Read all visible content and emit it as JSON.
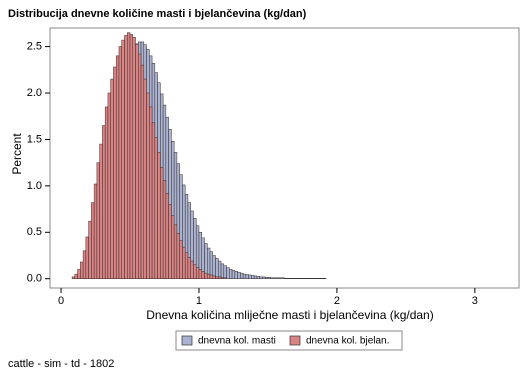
{
  "chart_data": {
    "type": "histogram",
    "title": "Distribucija dnevne količine masti i bjelančevina (kg/dan)",
    "x_label": "Dnevna količina mliječne masti i bjelančevina (kg/dan)",
    "y_label": "Percent",
    "footnote": "cattle - sim - td - 1802",
    "bins": [
      0.08,
      0.1,
      0.12,
      0.14,
      0.16,
      0.18,
      0.2,
      0.22,
      0.24,
      0.26,
      0.28,
      0.3,
      0.32,
      0.34,
      0.36,
      0.38,
      0.4,
      0.42,
      0.44,
      0.46,
      0.48,
      0.5,
      0.52,
      0.54,
      0.56,
      0.58,
      0.6,
      0.62,
      0.64,
      0.66,
      0.68,
      0.7,
      0.72,
      0.74,
      0.76,
      0.78,
      0.8,
      0.82,
      0.84,
      0.86,
      0.88,
      0.9,
      0.92,
      0.94,
      0.96,
      0.98,
      1,
      1.02,
      1.04,
      1.06,
      1.08,
      1.1,
      1.12,
      1.14,
      1.16,
      1.18,
      1.2,
      1.22,
      1.24,
      1.26,
      1.28,
      1.3,
      1.32,
      1.34,
      1.36,
      1.38,
      1.4,
      1.42,
      1.44,
      1.46,
      1.48,
      1.5,
      1.52,
      1.54,
      1.56,
      1.58,
      1.6,
      1.62,
      1.64,
      1.66,
      1.68,
      1.7,
      1.72,
      1.74,
      1.76,
      1.78,
      1.8,
      1.82,
      1.84,
      1.86,
      1.88,
      1.9,
      1.92,
      1.94,
      1.96,
      1.98,
      2
    ],
    "series": [
      {
        "name": "dnevna kol. masti",
        "color": "#a9b4d3",
        "values": [
          0,
          0.01,
          0.03,
          0.06,
          0.1,
          0.16,
          0.24,
          0.34,
          0.46,
          0.6,
          0.76,
          0.93,
          1.1,
          1.28,
          1.46,
          1.64,
          1.8,
          1.96,
          2.1,
          2.22,
          2.33,
          2.42,
          2.49,
          2.53,
          2.55,
          2.55,
          2.52,
          2.47,
          2.4,
          2.32,
          2.22,
          2.11,
          1.99,
          1.87,
          1.74,
          1.61,
          1.48,
          1.36,
          1.24,
          1.12,
          1.01,
          0.91,
          0.82,
          0.73,
          0.65,
          0.57,
          0.5,
          0.44,
          0.38,
          0.33,
          0.29,
          0.25,
          0.22,
          0.19,
          0.16,
          0.14,
          0.12,
          0.1,
          0.09,
          0.08,
          0.07,
          0.06,
          0.05,
          0.045,
          0.04,
          0.035,
          0.03,
          0.025,
          0.02,
          0.02,
          0.015,
          0.015,
          0.01,
          0.01,
          0.01,
          0.01,
          0.01,
          0.005,
          0.005,
          0.005,
          0.005,
          0.005,
          0.005,
          0.005,
          0.005,
          0.005,
          0.005,
          0.005,
          0.005,
          0.005,
          0.005,
          0.005,
          0,
          0,
          0,
          0
        ]
      },
      {
        "name": "dnevna kol. bjelan.",
        "color": "#d98484",
        "values": [
          0.02,
          0.05,
          0.1,
          0.18,
          0.3,
          0.45,
          0.62,
          0.82,
          1.02,
          1.25,
          1.45,
          1.65,
          1.85,
          2,
          2.15,
          2.28,
          2.4,
          2.5,
          2.57,
          2.62,
          2.65,
          2.63,
          2.6,
          2.52,
          2.42,
          2.3,
          2.15,
          2,
          1.85,
          1.68,
          1.52,
          1.36,
          1.2,
          1.06,
          0.92,
          0.8,
          0.68,
          0.58,
          0.49,
          0.41,
          0.34,
          0.28,
          0.23,
          0.19,
          0.15,
          0.12,
          0.1,
          0.08,
          0.06,
          0.05,
          0.04,
          0.03,
          0.02,
          0.02,
          0.01,
          0.01,
          0,
          0,
          0,
          0,
          0,
          0,
          0,
          0,
          0,
          0,
          0,
          0,
          0,
          0,
          0,
          0,
          0,
          0,
          0,
          0,
          0,
          0,
          0,
          0,
          0,
          0,
          0,
          0,
          0,
          0,
          0,
          0,
          0,
          0,
          0,
          0,
          0,
          0,
          0,
          0
        ]
      }
    ],
    "xlim": [
      -0.08,
      3.32
    ],
    "ylim": [
      -0.1,
      2.7
    ],
    "xticks": [
      0,
      1,
      2,
      3
    ],
    "yticks": [
      {
        "value": 0,
        "label": "0.0"
      },
      0.5,
      {
        "value": 1,
        "label": "1.0"
      },
      1.5,
      {
        "value": 2,
        "label": "2.0"
      },
      2.5
    ]
  }
}
